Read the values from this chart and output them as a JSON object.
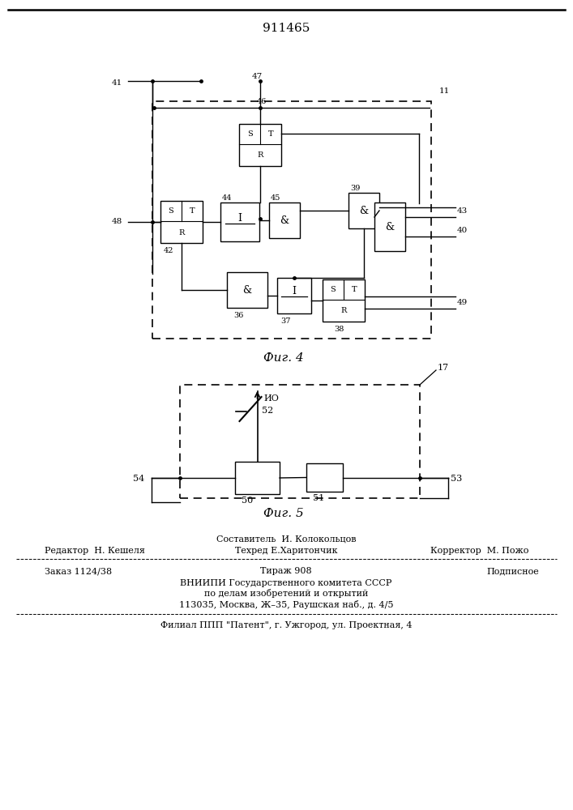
{
  "title": "911465",
  "fig4_label": "Фиг. 4",
  "fig5_label": "Фиг. 5",
  "footer_line1_top_center": "Составитель  И. Колокольцов",
  "footer_line1_left": "Редактор  Н. Кешеля",
  "footer_line1_center": "Техред Е.Харитончик",
  "footer_line1_right": "Корректор  М. Пожо",
  "footer_line2_left": "Заказ 1124/38",
  "footer_line2_center": "Тираж 908",
  "footer_line2_right": "Подписное",
  "footer_line3": "ВНИИПИ Государственного комитета СССР",
  "footer_line4": "по делам изобретений и открытий",
  "footer_line5": "113035, Москва, Ж–35, Раушская наб., д. 4/5",
  "footer_line6": "Филиал ППП \"Патент\", г. Ужгород, ул. Проектная, 4",
  "bg_color": "#ffffff"
}
